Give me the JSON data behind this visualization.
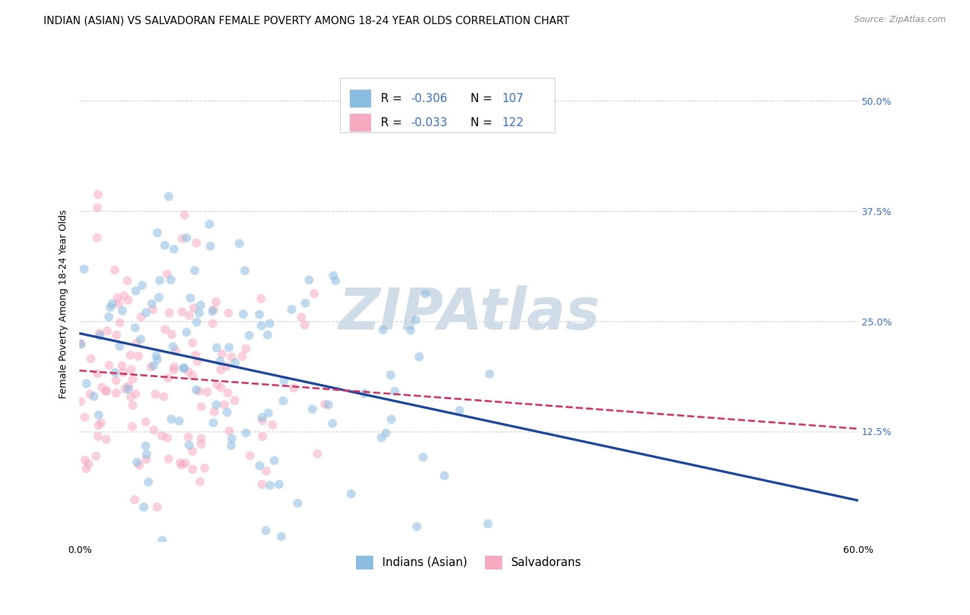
{
  "title": "INDIAN (ASIAN) VS SALVADORAN FEMALE POVERTY AMONG 18-24 YEAR OLDS CORRELATION CHART",
  "source": "Source: ZipAtlas.com",
  "ylabel": "Female Poverty Among 18-24 Year Olds",
  "xlim": [
    0.0,
    0.6
  ],
  "ylim": [
    0.0,
    0.54
  ],
  "xticks": [
    0.0,
    0.1,
    0.2,
    0.3,
    0.4,
    0.5,
    0.6
  ],
  "xticklabels": [
    "0.0%",
    "",
    "",
    "",
    "",
    "",
    "60.0%"
  ],
  "ytick_labels_right": [
    "12.5%",
    "25.0%",
    "37.5%",
    "50.0%"
  ],
  "ytick_vals_right": [
    0.125,
    0.25,
    0.375,
    0.5
  ],
  "grid_color": "#cccccc",
  "background_color": "#ffffff",
  "watermark": "ZIPAtlas",
  "watermark_color": "#d0dce8",
  "series1_color": "#8bbde0",
  "series2_color": "#f5aac0",
  "series1_label": "Indians (Asian)",
  "series2_label": "Salvadorans",
  "series1_R": "-0.306",
  "series1_N": "107",
  "series2_R": "-0.033",
  "series2_N": "122",
  "trend1_color": "#1a4499",
  "trend2_color": "#cc3366",
  "legend_color": "#3a6ec8",
  "axis_label_color": "#3a6ec8",
  "n1": 107,
  "n2": 122,
  "R1": -0.306,
  "R2": -0.033,
  "marker_size": 90,
  "marker_alpha": 0.55,
  "title_fontsize": 11,
  "source_fontsize": 9,
  "ylabel_fontsize": 10,
  "tick_fontsize": 10,
  "legend_fontsize": 12,
  "watermark_fontsize": 60
}
